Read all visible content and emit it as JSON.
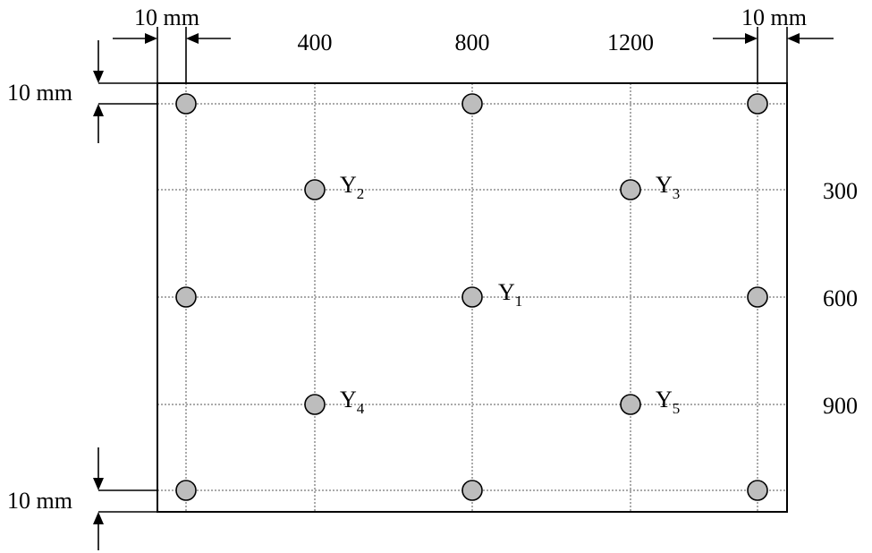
{
  "diagram": {
    "margin_labels": {
      "top_left": "10 mm",
      "top_right": "10 mm",
      "left_top": "10 mm",
      "left_bottom": "10 mm"
    },
    "x_ticks": [
      "400",
      "800",
      "1200"
    ],
    "y_ticks": [
      "300",
      "600",
      "900"
    ],
    "points": [
      {
        "name": "Y",
        "sub": "1"
      },
      {
        "name": "Y",
        "sub": "2"
      },
      {
        "name": "Y",
        "sub": "3"
      },
      {
        "name": "Y",
        "sub": "4"
      },
      {
        "name": "Y",
        "sub": "5"
      }
    ],
    "colors": {
      "point_fill": "#bdbdbd",
      "line": "#000000",
      "grid": "#555555"
    }
  }
}
